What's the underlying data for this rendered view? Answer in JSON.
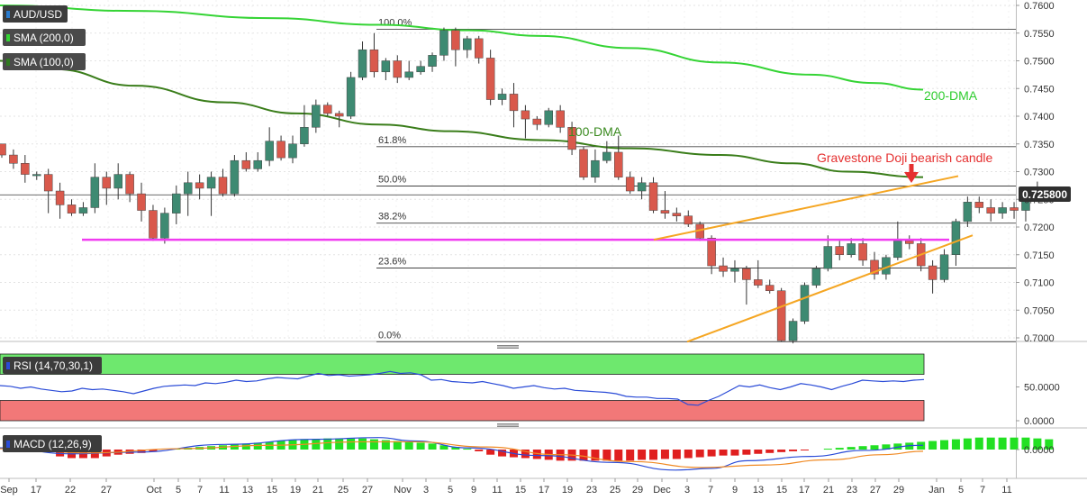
{
  "chart_data": {
    "type": "candlestick",
    "symbol": "AUD/USD",
    "price_label": "0.725800",
    "price_now": 0.7258,
    "price_ticks": [
      "0.7600",
      "0.7550",
      "0.7500",
      "0.7450",
      "0.7400",
      "0.7350",
      "0.7300",
      "0.7250",
      "0.7200",
      "0.7150",
      "0.7100",
      "0.7050",
      "0.7000"
    ],
    "price_range": [
      0.699,
      0.761
    ],
    "x_ticks": [
      "Sep",
      "17",
      "22",
      "27",
      "Oct",
      "5",
      "7",
      "11",
      "13",
      "15",
      "19",
      "21",
      "25",
      "27",
      "Nov",
      "3",
      "5",
      "9",
      "11",
      "15",
      "17",
      "19",
      "23",
      "25",
      "29",
      "Dec",
      "3",
      "7",
      "9",
      "13",
      "15",
      "17",
      "21",
      "23",
      "27",
      "29",
      "Jan",
      "5",
      "7",
      "11"
    ],
    "indicators": {
      "sma200": "SMA (200,0)",
      "sma100": "SMA (100,0)"
    },
    "annotations": {
      "dma200": "200-DMA",
      "dma100": "100-DMA",
      "doji": "Gravestone Doji bearish candle"
    },
    "fib_levels": [
      {
        "label": "100.0%",
        "value": 0.7557
      },
      {
        "label": "61.8%",
        "value": 0.7345
      },
      {
        "label": "50.0%",
        "value": 0.7274
      },
      {
        "label": "38.2%",
        "value": 0.7207
      },
      {
        "label": "23.6%",
        "value": 0.7126
      },
      {
        "label": "0.0%",
        "value": 0.6993
      }
    ],
    "support_level": 0.7177,
    "candles": [
      [
        0.735,
        0.733,
        0.735,
        0.7325
      ],
      [
        0.733,
        0.7315,
        0.734,
        0.7305
      ],
      [
        0.7315,
        0.7295,
        0.733,
        0.728
      ],
      [
        0.7295,
        0.7295,
        0.73,
        0.7285
      ],
      [
        0.7295,
        0.7265,
        0.7305,
        0.7225
      ],
      [
        0.7265,
        0.724,
        0.728,
        0.7215
      ],
      [
        0.724,
        0.7225,
        0.725,
        0.722
      ],
      [
        0.7225,
        0.7235,
        0.7245,
        0.722
      ],
      [
        0.7235,
        0.729,
        0.7315,
        0.7225
      ],
      [
        0.729,
        0.727,
        0.73,
        0.724
      ],
      [
        0.727,
        0.7295,
        0.7315,
        0.725
      ],
      [
        0.7295,
        0.726,
        0.73,
        0.7245
      ],
      [
        0.726,
        0.723,
        0.728,
        0.721
      ],
      [
        0.723,
        0.718,
        0.724,
        0.7175
      ],
      [
        0.718,
        0.7225,
        0.7235,
        0.717
      ],
      [
        0.7225,
        0.726,
        0.7275,
        0.7205
      ],
      [
        0.726,
        0.728,
        0.73,
        0.722
      ],
      [
        0.728,
        0.727,
        0.7295,
        0.725
      ],
      [
        0.727,
        0.729,
        0.73,
        0.722
      ],
      [
        0.729,
        0.726,
        0.7305,
        0.7255
      ],
      [
        0.726,
        0.732,
        0.733,
        0.7255
      ],
      [
        0.732,
        0.7305,
        0.7335,
        0.73
      ],
      [
        0.7305,
        0.732,
        0.7335,
        0.73
      ],
      [
        0.732,
        0.7355,
        0.738,
        0.731
      ],
      [
        0.7355,
        0.7325,
        0.7365,
        0.732
      ],
      [
        0.7325,
        0.735,
        0.7365,
        0.7315
      ],
      [
        0.735,
        0.738,
        0.742,
        0.7345
      ],
      [
        0.738,
        0.742,
        0.743,
        0.737
      ],
      [
        0.742,
        0.7405,
        0.7425,
        0.74
      ],
      [
        0.7405,
        0.74,
        0.741,
        0.738
      ],
      [
        0.74,
        0.747,
        0.748,
        0.7395
      ],
      [
        0.747,
        0.752,
        0.7535,
        0.7465
      ],
      [
        0.752,
        0.748,
        0.755,
        0.747
      ],
      [
        0.748,
        0.75,
        0.7505,
        0.7465
      ],
      [
        0.75,
        0.747,
        0.751,
        0.746
      ],
      [
        0.747,
        0.748,
        0.75,
        0.7465
      ],
      [
        0.748,
        0.749,
        0.75,
        0.7475
      ],
      [
        0.749,
        0.751,
        0.7515,
        0.748
      ],
      [
        0.751,
        0.7555,
        0.756,
        0.75
      ],
      [
        0.7555,
        0.752,
        0.756,
        0.749
      ],
      [
        0.752,
        0.754,
        0.7545,
        0.7505
      ],
      [
        0.754,
        0.7505,
        0.7545,
        0.7495
      ],
      [
        0.7505,
        0.743,
        0.752,
        0.742
      ],
      [
        0.743,
        0.744,
        0.745,
        0.742
      ],
      [
        0.744,
        0.741,
        0.746,
        0.738
      ],
      [
        0.741,
        0.7395,
        0.742,
        0.736
      ],
      [
        0.7395,
        0.7385,
        0.74,
        0.7375
      ],
      [
        0.7385,
        0.741,
        0.7415,
        0.738
      ],
      [
        0.741,
        0.738,
        0.742,
        0.737
      ],
      [
        0.738,
        0.734,
        0.739,
        0.733
      ],
      [
        0.734,
        0.729,
        0.7345,
        0.7285
      ],
      [
        0.729,
        0.732,
        0.734,
        0.728
      ],
      [
        0.732,
        0.7335,
        0.7355,
        0.7315
      ],
      [
        0.7335,
        0.729,
        0.7365,
        0.7285
      ],
      [
        0.729,
        0.7265,
        0.73,
        0.726
      ],
      [
        0.7265,
        0.728,
        0.729,
        0.725
      ],
      [
        0.728,
        0.723,
        0.729,
        0.7225
      ],
      [
        0.723,
        0.7225,
        0.7265,
        0.7215
      ],
      [
        0.7225,
        0.722,
        0.7235,
        0.721
      ],
      [
        0.722,
        0.7205,
        0.723,
        0.72
      ],
      [
        0.7205,
        0.718,
        0.721,
        0.7175
      ],
      [
        0.718,
        0.713,
        0.7185,
        0.7115
      ],
      [
        0.713,
        0.712,
        0.7145,
        0.711
      ],
      [
        0.712,
        0.7125,
        0.714,
        0.71
      ],
      [
        0.7125,
        0.7105,
        0.713,
        0.706
      ],
      [
        0.7105,
        0.7095,
        0.714,
        0.709
      ],
      [
        0.7095,
        0.7085,
        0.7105,
        0.708
      ],
      [
        0.7085,
        0.6995,
        0.709,
        0.6993
      ],
      [
        0.6995,
        0.703,
        0.7035,
        0.699
      ],
      [
        0.703,
        0.7095,
        0.71,
        0.7025
      ],
      [
        0.7095,
        0.7125,
        0.713,
        0.709
      ],
      [
        0.7125,
        0.7165,
        0.7185,
        0.712
      ],
      [
        0.7165,
        0.715,
        0.7175,
        0.714
      ],
      [
        0.715,
        0.717,
        0.718,
        0.7145
      ],
      [
        0.717,
        0.714,
        0.718,
        0.713
      ],
      [
        0.714,
        0.7115,
        0.7155,
        0.7105
      ],
      [
        0.7115,
        0.7145,
        0.715,
        0.7105
      ],
      [
        0.7145,
        0.7175,
        0.721,
        0.714
      ],
      [
        0.7175,
        0.717,
        0.7185,
        0.716
      ],
      [
        0.717,
        0.713,
        0.718,
        0.712
      ],
      [
        0.713,
        0.7105,
        0.714,
        0.708
      ],
      [
        0.7105,
        0.715,
        0.716,
        0.71
      ],
      [
        0.715,
        0.721,
        0.7215,
        0.713
      ],
      [
        0.721,
        0.7245,
        0.7255,
        0.72
      ],
      [
        0.7245,
        0.7235,
        0.7255,
        0.7225
      ],
      [
        0.7235,
        0.7225,
        0.725,
        0.721
      ],
      [
        0.7225,
        0.7235,
        0.7245,
        0.7215
      ],
      [
        0.7235,
        0.723,
        0.7245,
        0.7215
      ],
      [
        0.723,
        0.725,
        0.7265,
        0.721
      ],
      [
        0.725,
        0.725,
        0.7282,
        0.7245
      ],
      [
        0.725,
        0.7258,
        0.7265,
        0.7245
      ]
    ],
    "rsi": {
      "label": "RSI (14,70,30,1)",
      "ticks": [
        "50.0000",
        "0.0000"
      ],
      "values": [
        52,
        51,
        48,
        50,
        47,
        45,
        43,
        44,
        48,
        46,
        47,
        45,
        43,
        40,
        44,
        48,
        51,
        52,
        53,
        52,
        56,
        55,
        57,
        60,
        58,
        59,
        62,
        64,
        63,
        62,
        66,
        70,
        67,
        68,
        66,
        67,
        68,
        70,
        73,
        70,
        71,
        68,
        60,
        61,
        58,
        57,
        56,
        58,
        55,
        52,
        48,
        50,
        52,
        49,
        47,
        48,
        45,
        44,
        43,
        42,
        40,
        36,
        35,
        35,
        33,
        33,
        32,
        24,
        23,
        30,
        36,
        44,
        52,
        50,
        53,
        49,
        46,
        50,
        55,
        53,
        50,
        46,
        51,
        55,
        60,
        59,
        58,
        59,
        58,
        60,
        61
      ]
    },
    "macd": {
      "label": "MACD (12,26,9)",
      "tick": "0.0000",
      "hist": [
        0,
        0,
        0,
        0,
        0,
        -0.0008,
        -0.001,
        -0.001,
        -0.001,
        -0.0008,
        -0.0006,
        -0.0005,
        -0.0004,
        -0.0002,
        0,
        0.0001,
        0.0002,
        0.0003,
        0.0004,
        0.0005,
        0.0006,
        0.0007,
        0.0008,
        0.0009,
        0.001,
        0.0011,
        0.0012,
        0.0012,
        0.0013,
        0.0013,
        0.0013,
        0.0013,
        0.0012,
        0.0011,
        0.001,
        0.0009,
        0.0008,
        0.0007,
        0.0005,
        0.0003,
        0.0001,
        -0.0002,
        -0.0006,
        -0.0008,
        -0.0009,
        -0.001,
        -0.0011,
        -0.0012,
        -0.0013,
        -0.0013,
        -0.0013,
        -0.0013,
        -0.0013,
        -0.0013,
        -0.0013,
        -0.0012,
        -0.0012,
        -0.0011,
        -0.0011,
        -0.001,
        -0.0009,
        -0.0008,
        -0.0007,
        -0.0007,
        -0.0006,
        -0.0005,
        -0.0004,
        -0.0003,
        -0.0002,
        -0.0001,
        0,
        0.0001,
        0.0002,
        0.0003,
        0.0004,
        0.0005,
        0.0006,
        0.0007,
        0.0008,
        0.0009,
        0.001,
        0.0011,
        0.0012,
        0.0013,
        0.0014,
        0.0014,
        0.0014,
        0.0014,
        0.0014,
        0.0013,
        0.0012
      ]
    }
  }
}
